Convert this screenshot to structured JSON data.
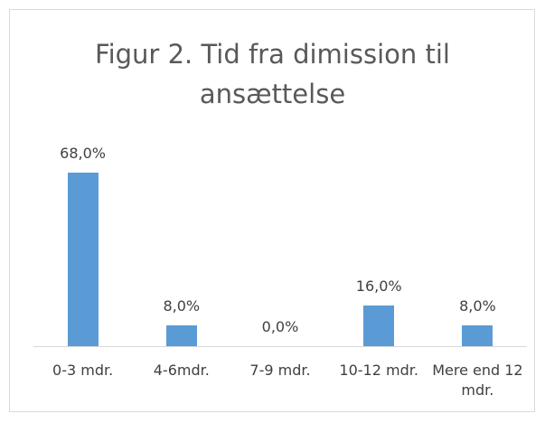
{
  "chart_data": {
    "type": "bar",
    "title": "Figur 2. Tid fra dimission til ansættelse",
    "categories": [
      "0-3 mdr.",
      "4-6mdr.",
      "7-9 mdr.",
      "10-12 mdr.",
      "Mere end 12 mdr."
    ],
    "values": [
      68,
      8,
      0,
      16,
      8
    ],
    "value_labels": [
      "68,0%",
      "8,0%",
      "0,0%",
      "16,0%",
      "8,0%"
    ],
    "color": "#5b9bd5",
    "ylim": [
      0,
      80
    ]
  }
}
